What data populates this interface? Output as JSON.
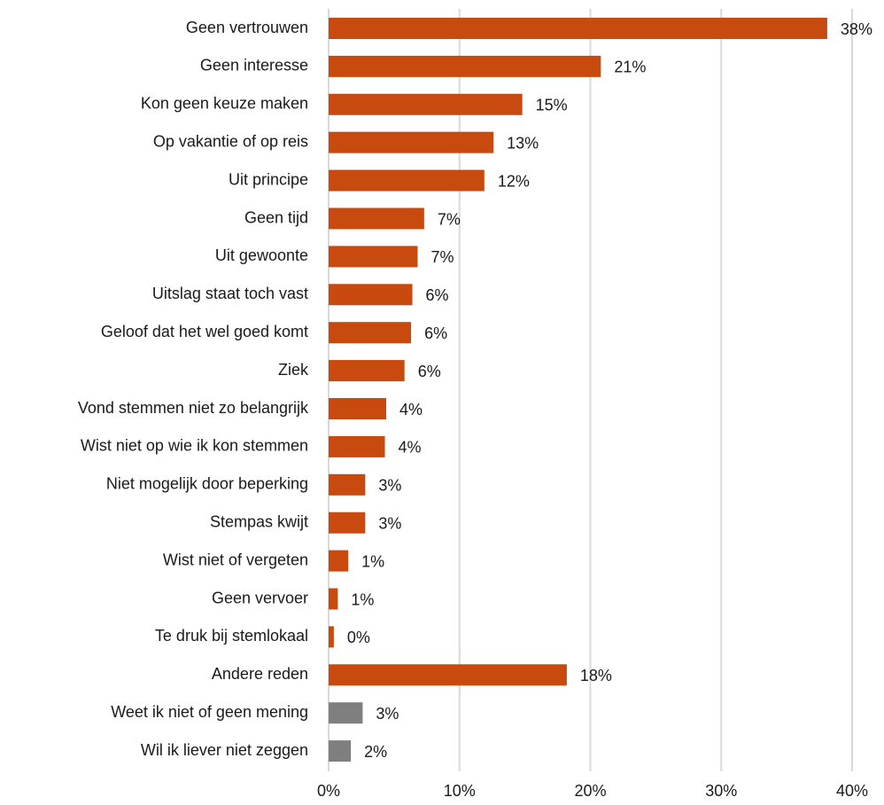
{
  "chart_data": {
    "type": "bar",
    "orientation": "horizontal",
    "title": "",
    "xlabel": "",
    "ylabel": "",
    "categories": [
      "Geen vertrouwen",
      "Geen interesse",
      "Kon geen keuze maken",
      "Op vakantie of op reis",
      "Uit principe",
      "Geen tijd",
      "Uit gewoonte",
      "Uitslag staat toch vast",
      "Geloof dat het wel goed komt",
      "Ziek",
      "Vond stemmen niet zo belangrijk",
      "Wist niet op wie ik kon stemmen",
      "Niet mogelijk door beperking",
      "Stempas kwijt",
      "Wist niet of vergeten",
      "Geen vervoer",
      "Te druk bij stemlokaal",
      "Andere reden",
      "Weet ik niet of geen mening",
      "Wil ik liever niet zeggen"
    ],
    "values": [
      38.1,
      20.8,
      14.8,
      12.6,
      11.9,
      7.3,
      6.8,
      6.4,
      6.3,
      5.8,
      4.4,
      4.3,
      2.8,
      2.8,
      1.5,
      0.7,
      0.4,
      18.2,
      2.6,
      1.7
    ],
    "value_labels": [
      "38%",
      "21%",
      "15%",
      "13%",
      "12%",
      "7%",
      "7%",
      "6%",
      "6%",
      "6%",
      "4%",
      "4%",
      "3%",
      "3%",
      "1%",
      "1%",
      "0%",
      "18%",
      "3%",
      "2%"
    ],
    "bar_colors": [
      "#c94a0f",
      "#c94a0f",
      "#c94a0f",
      "#c94a0f",
      "#c94a0f",
      "#c94a0f",
      "#c94a0f",
      "#c94a0f",
      "#c94a0f",
      "#c94a0f",
      "#c94a0f",
      "#c94a0f",
      "#c94a0f",
      "#c94a0f",
      "#c94a0f",
      "#c94a0f",
      "#c94a0f",
      "#c94a0f",
      "#7f7f7f",
      "#7f7f7f"
    ],
    "xlim": [
      0,
      40
    ],
    "xticks": [
      0,
      10,
      20,
      30,
      40
    ],
    "xtick_labels": [
      "0%",
      "10%",
      "20%",
      "30%",
      "40%"
    ],
    "grid": "vertical",
    "legend": "none"
  }
}
